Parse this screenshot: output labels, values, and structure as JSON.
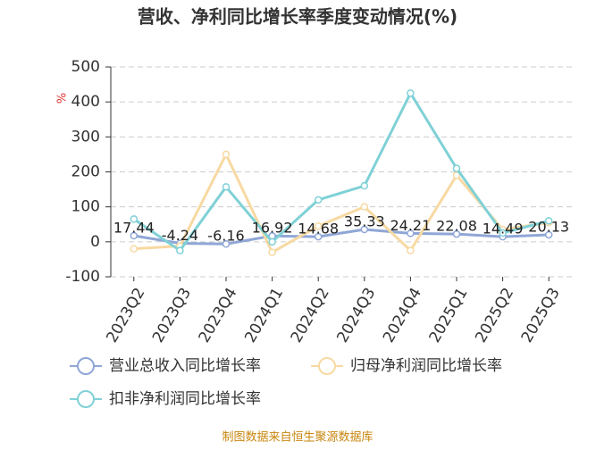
{
  "chart_data": {
    "type": "line",
    "title": "营收、净利同比增长率季度变动情况(%)",
    "y_unit": "%",
    "source": "制图数据来自恒生聚源数据库",
    "categories": [
      "2023Q2",
      "2023Q3",
      "2023Q4",
      "2024Q1",
      "2024Q2",
      "2024Q3",
      "2024Q4",
      "2025Q1",
      "2025Q2",
      "2025Q3"
    ],
    "series": [
      {
        "name": "营业总收入同比增长率",
        "color": "#8fa6d6",
        "show_labels": true,
        "values": [
          17.44,
          -4.24,
          -6.16,
          16.92,
          14.68,
          35.33,
          24.21,
          22.08,
          14.49,
          20.13
        ]
      },
      {
        "name": "归母净利润同比增长率",
        "color": "#f7d9a2",
        "show_labels": false,
        "values": [
          -20,
          -12,
          250,
          -30,
          45,
          100,
          -25,
          190,
          35,
          55
        ]
      },
      {
        "name": "扣非净利润同比增长率",
        "color": "#7fd1d6",
        "show_labels": false,
        "values": [
          65,
          -25,
          157,
          0,
          120,
          160,
          425,
          210,
          25,
          60
        ]
      }
    ],
    "ylim": [
      -100,
      500
    ],
    "yticks": [
      -100,
      0,
      100,
      200,
      300,
      400,
      500
    ],
    "grid": true
  }
}
